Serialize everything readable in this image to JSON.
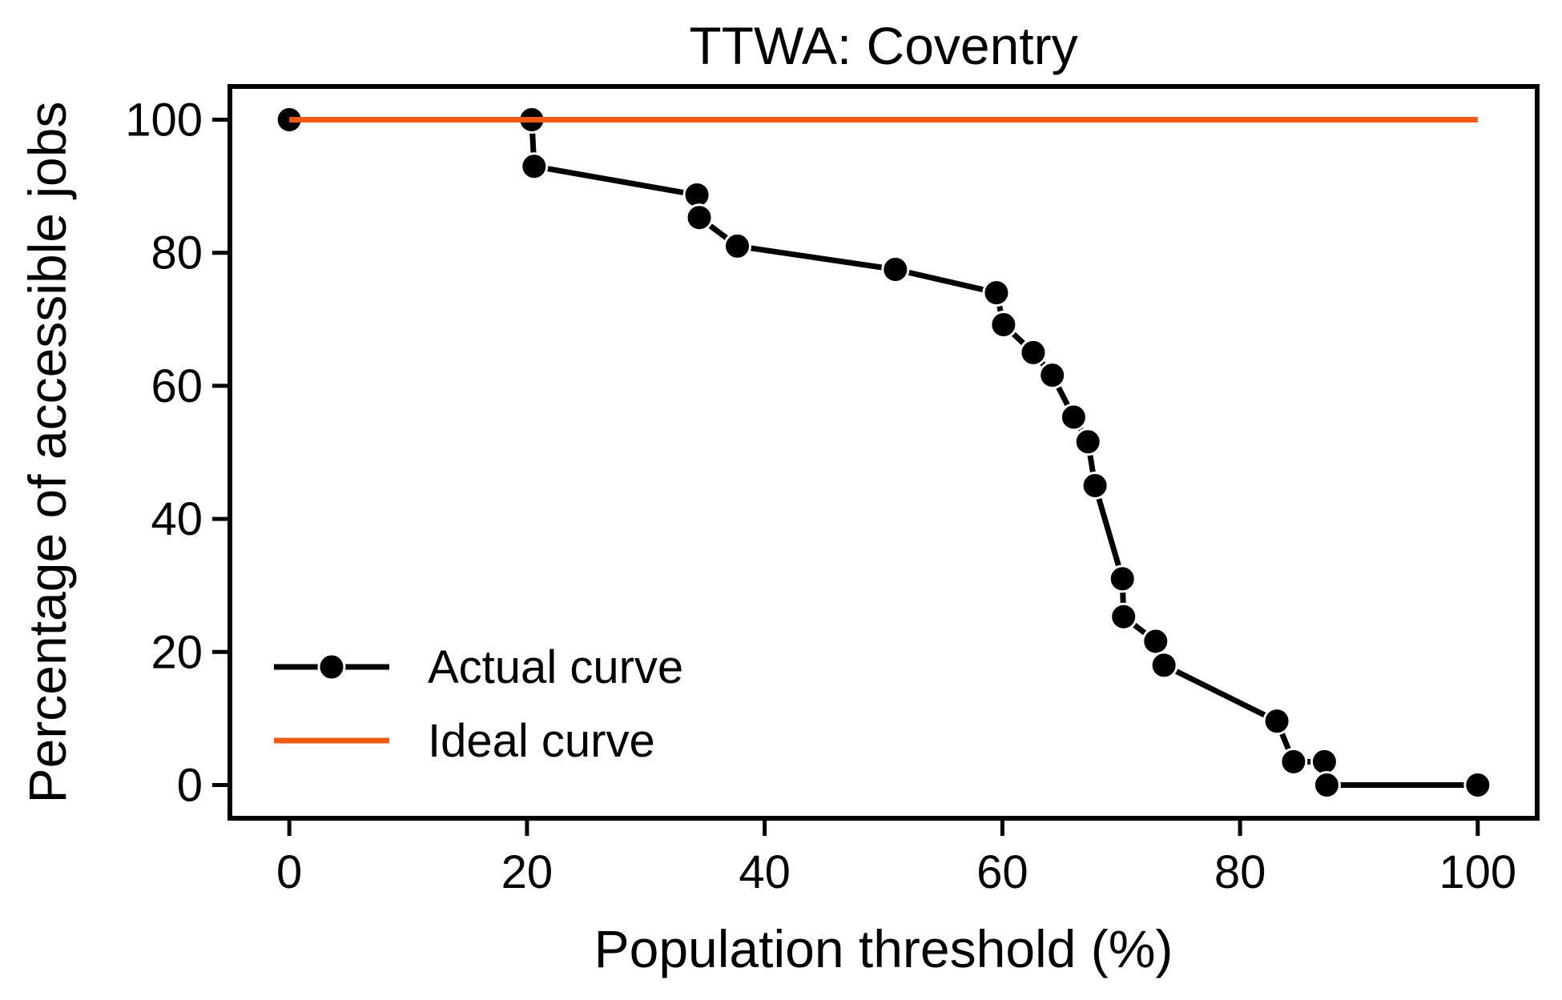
{
  "chart_data": {
    "type": "line",
    "title": "TTWA: Coventry",
    "xlabel": "Population threshold (%)",
    "ylabel": "Percentage of accessible jobs",
    "xlim": [
      -5,
      105
    ],
    "ylim": [
      -5,
      105
    ],
    "xticks": [
      0,
      20,
      40,
      60,
      80,
      100
    ],
    "yticks": [
      0,
      20,
      40,
      60,
      80,
      100
    ],
    "grid": false,
    "legend_position": "lower-left",
    "series": [
      {
        "name": "Actual curve",
        "color": "#000000",
        "marker": "circle",
        "x": [
          0,
          20.4,
          20.6,
          34.3,
          34.5,
          37.7,
          51,
          59.5,
          60.1,
          62.6,
          64.2,
          66,
          67.2,
          67.8,
          70.1,
          70.2,
          72.9,
          73.6,
          83.1,
          84.5,
          87.1,
          87.3,
          100
        ],
        "y": [
          100,
          100,
          93,
          88.7,
          85.3,
          81,
          77.5,
          74,
          69.2,
          65,
          61.6,
          55.3,
          51.6,
          45,
          31,
          25.3,
          21.6,
          18,
          9.6,
          3.5,
          3.5,
          0,
          0
        ]
      },
      {
        "name": "Ideal curve",
        "color": "#f05a12",
        "marker": "none",
        "x": [
          0,
          100
        ],
        "y": [
          100,
          100
        ]
      }
    ]
  }
}
